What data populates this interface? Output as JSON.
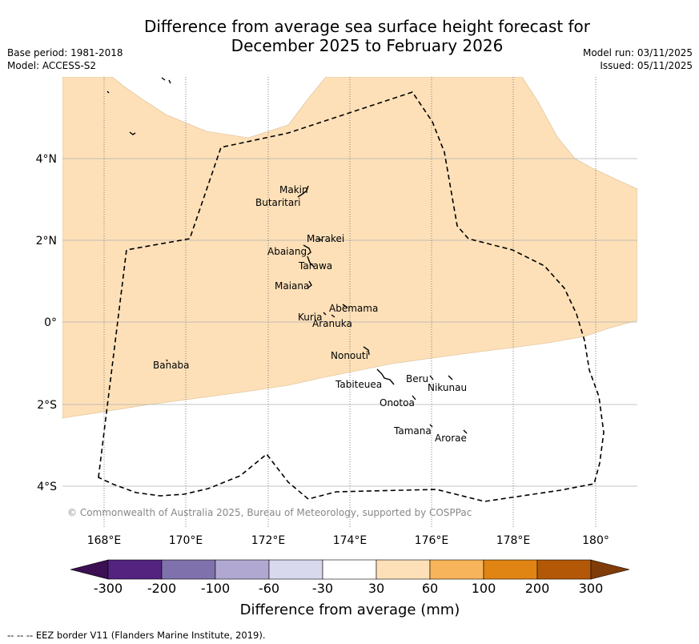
{
  "title": {
    "line1": "Difference from average sea surface height forecast for",
    "line2": "December 2025 to February 2026"
  },
  "meta": {
    "base_period": "Base period: 1981-2018",
    "model": "Model: ACCESS-S2",
    "model_run": "Model run: 03/11/2025",
    "issued": "Issued: 05/11/2025"
  },
  "map": {
    "lon_range": [
      167,
      181
    ],
    "lat_range": [
      -5,
      6
    ],
    "lon_ticks": [
      "168°E",
      "170°E",
      "172°E",
      "174°E",
      "176°E",
      "178°E",
      "180°"
    ],
    "lat_ticks": [
      "4°N",
      "2°N",
      "0°",
      "2°S",
      "4°S"
    ],
    "copyright": "© Commonwealth of Australia 2025, Bureau of Meteorology, supported by COSPPac",
    "colors": {
      "anomaly_30_60": "#fde0b8",
      "gridline": "#b0b0b0",
      "ocean": "#ffffff"
    },
    "places": [
      {
        "name": "Makin"
      },
      {
        "name": "Butaritari"
      },
      {
        "name": "Marakei"
      },
      {
        "name": "Abaiang"
      },
      {
        "name": "Tarawa"
      },
      {
        "name": "Maiana"
      },
      {
        "name": "Abemama"
      },
      {
        "name": "Kuria"
      },
      {
        "name": "Aranuka"
      },
      {
        "name": "Nonouti"
      },
      {
        "name": "Banaba"
      },
      {
        "name": "Beru"
      },
      {
        "name": "Nikunau"
      },
      {
        "name": "Tabiteuea"
      },
      {
        "name": "Onotoa"
      },
      {
        "name": "Tamana"
      },
      {
        "name": "Arorae"
      }
    ]
  },
  "colorbar": {
    "label": "Difference from average (mm)",
    "ticks": [
      "-300",
      "-200",
      "-100",
      "-60",
      "-30",
      "30",
      "60",
      "100",
      "200",
      "300"
    ],
    "colors": [
      "#3b0f52",
      "#53237f",
      "#7f71ab",
      "#b0a8d1",
      "#d8d9ec",
      "#ffffff",
      "#fde0b8",
      "#f8b45a",
      "#e08414",
      "#b35807",
      "#7f3b08"
    ]
  },
  "footnote": "--  --  -- EEZ border V11 (Flanders Marine Institute, 2019)."
}
